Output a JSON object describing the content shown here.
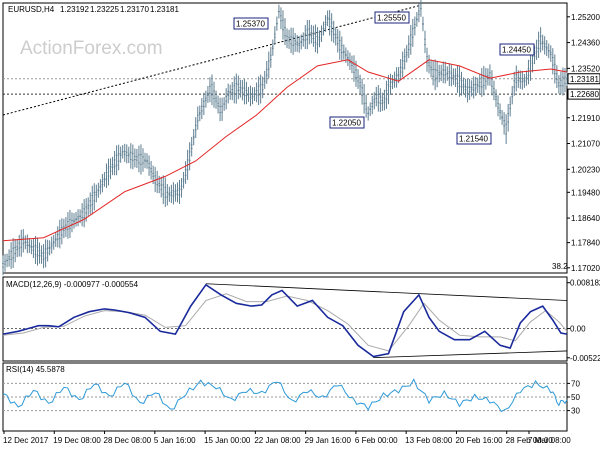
{
  "chart_data": [
    {
      "type": "candlestick",
      "symbol_label": "EURUSD,H4",
      "ohlc": [
        "1.23192",
        "1.23225",
        "1.23170",
        "1.23181"
      ],
      "watermark": "ActionForex.com",
      "ylim": [
        1.1685,
        1.2565
      ],
      "y_ticks": [
        "1.25200",
        "1.24360",
        "1.23520",
        "1.22680",
        "1.21910",
        "1.21070",
        "1.20230",
        "1.19480",
        "1.18640",
        "1.17840",
        "1.17020"
      ],
      "current_price": "1.23181",
      "horizontal_level": "1.22680",
      "corner_text": "38.2",
      "annotations": [
        {
          "text": "1.25370",
          "value": 1.2537
        },
        {
          "text": "1.25550",
          "value": 1.2555
        },
        {
          "text": "1.22050",
          "value": 1.2205
        },
        {
          "text": "1.24450",
          "value": 1.2445
        },
        {
          "text": "1.21540",
          "value": 1.2154
        }
      ],
      "price_path": [
        [
          0,
          1.171
        ],
        [
          20,
          1.179
        ],
        [
          40,
          1.174
        ],
        [
          60,
          1.183
        ],
        [
          80,
          1.188
        ],
        [
          95,
          1.196
        ],
        [
          105,
          1.202
        ],
        [
          118,
          1.208
        ],
        [
          130,
          1.206
        ],
        [
          142,
          1.205
        ],
        [
          150,
          1.199
        ],
        [
          162,
          1.194
        ],
        [
          175,
          1.195
        ],
        [
          183,
          1.205
        ],
        [
          192,
          1.219
        ],
        [
          205,
          1.229
        ],
        [
          215,
          1.221
        ],
        [
          222,
          1.227
        ],
        [
          232,
          1.229
        ],
        [
          245,
          1.226
        ],
        [
          256,
          1.229
        ],
        [
          265,
          1.24
        ],
        [
          272,
          1.2537
        ],
        [
          280,
          1.245
        ],
        [
          292,
          1.243
        ],
        [
          302,
          1.247
        ],
        [
          311,
          1.244
        ],
        [
          320,
          1.2515
        ],
        [
          333,
          1.242
        ],
        [
          345,
          1.236
        ],
        [
          352,
          1.23
        ],
        [
          360,
          1.2205
        ],
        [
          368,
          1.226
        ],
        [
          375,
          1.224
        ],
        [
          382,
          1.23
        ],
        [
          390,
          1.233
        ],
        [
          398,
          1.24
        ],
        [
          406,
          1.249
        ],
        [
          412,
          1.2555
        ],
        [
          418,
          1.238
        ],
        [
          425,
          1.233
        ],
        [
          435,
          1.234
        ],
        [
          447,
          1.232
        ],
        [
          458,
          1.228
        ],
        [
          470,
          1.23
        ],
        [
          480,
          1.233
        ],
        [
          488,
          1.223
        ],
        [
          496,
          1.2154
        ],
        [
          505,
          1.232
        ],
        [
          515,
          1.231
        ],
        [
          522,
          1.238
        ],
        [
          530,
          1.2445
        ],
        [
          540,
          1.24
        ],
        [
          548,
          1.23
        ],
        [
          556,
          1.2318
        ]
      ],
      "ma_path": [
        [
          0,
          1.179
        ],
        [
          40,
          1.18
        ],
        [
          80,
          1.186
        ],
        [
          120,
          1.195
        ],
        [
          160,
          1.2
        ],
        [
          190,
          1.205
        ],
        [
          220,
          1.213
        ],
        [
          250,
          1.22
        ],
        [
          280,
          1.229
        ],
        [
          310,
          1.236
        ],
        [
          340,
          1.238
        ],
        [
          360,
          1.234
        ],
        [
          390,
          1.231
        ],
        [
          420,
          1.238
        ],
        [
          450,
          1.236
        ],
        [
          480,
          1.232
        ],
        [
          510,
          1.234
        ],
        [
          540,
          1.235
        ],
        [
          556,
          1.234
        ]
      ],
      "trendline": [
        [
          0,
          1.22
        ],
        [
          412,
          1.2558
        ]
      ]
    },
    {
      "type": "line",
      "title": "MACD(12,26,9) -0.000977 -0.000554",
      "ylim": [
        -0.0058,
        0.0092
      ],
      "y_ticks": [
        {
          "text": "0.008182",
          "value": 0.008182
        },
        {
          "text": "0.00",
          "value": 0.0
        },
        {
          "text": "-0.005223",
          "value": -0.005223
        }
      ],
      "macd_path": [
        [
          0,
          -0.001
        ],
        [
          15,
          -0.0005
        ],
        [
          25,
          0.0
        ],
        [
          35,
          0.0005
        ],
        [
          45,
          0.0005
        ],
        [
          55,
          0.0003
        ],
        [
          70,
          0.002
        ],
        [
          85,
          0.003
        ],
        [
          100,
          0.0035
        ],
        [
          110,
          0.0033
        ],
        [
          125,
          0.0028
        ],
        [
          140,
          0.002
        ],
        [
          155,
          -0.0005
        ],
        [
          170,
          -0.001
        ],
        [
          185,
          0.004
        ],
        [
          200,
          0.0078
        ],
        [
          215,
          0.006
        ],
        [
          230,
          0.0045
        ],
        [
          245,
          0.004
        ],
        [
          255,
          0.0042
        ],
        [
          265,
          0.006
        ],
        [
          275,
          0.0068
        ],
        [
          290,
          0.004
        ],
        [
          305,
          0.005
        ],
        [
          320,
          0.002
        ],
        [
          335,
          0.0005
        ],
        [
          350,
          -0.003
        ],
        [
          365,
          -0.005
        ],
        [
          380,
          -0.0045
        ],
        [
          395,
          0.003
        ],
        [
          410,
          0.006
        ],
        [
          420,
          0.002
        ],
        [
          430,
          -0.0005
        ],
        [
          445,
          -0.002
        ],
        [
          460,
          -0.002
        ],
        [
          475,
          -0.0005
        ],
        [
          490,
          -0.003
        ],
        [
          500,
          -0.0035
        ],
        [
          510,
          0.001
        ],
        [
          520,
          0.003
        ],
        [
          532,
          0.004
        ],
        [
          542,
          0.0015
        ],
        [
          550,
          -0.0008
        ],
        [
          556,
          -0.001
        ]
      ],
      "signal_path": [
        [
          0,
          -0.0012
        ],
        [
          20,
          -0.0008
        ],
        [
          40,
          0.0002
        ],
        [
          60,
          0.0004
        ],
        [
          80,
          0.0022
        ],
        [
          100,
          0.0032
        ],
        [
          120,
          0.003
        ],
        [
          140,
          0.0024
        ],
        [
          160,
          0.0002
        ],
        [
          180,
          0.0005
        ],
        [
          200,
          0.005
        ],
        [
          220,
          0.0062
        ],
        [
          240,
          0.0048
        ],
        [
          260,
          0.0048
        ],
        [
          280,
          0.0058
        ],
        [
          300,
          0.005
        ],
        [
          320,
          0.0032
        ],
        [
          340,
          0.0008
        ],
        [
          360,
          -0.003
        ],
        [
          380,
          -0.004
        ],
        [
          400,
          0.0005
        ],
        [
          415,
          0.0045
        ],
        [
          430,
          0.0015
        ],
        [
          450,
          -0.0012
        ],
        [
          470,
          -0.0015
        ],
        [
          490,
          -0.0015
        ],
        [
          505,
          -0.0022
        ],
        [
          520,
          0.0012
        ],
        [
          535,
          0.0032
        ],
        [
          548,
          0.0012
        ],
        [
          556,
          -0.0005
        ]
      ],
      "trendline_upper": [
        [
          200,
          0.008
        ],
        [
          556,
          0.005
        ]
      ],
      "trendline_lower": [
        [
          365,
          -0.0052
        ],
        [
          556,
          -0.004
        ]
      ]
    },
    {
      "type": "line",
      "title": "RSI(14) 45.5878",
      "ylim": [
        0,
        100
      ],
      "y_ticks": [
        {
          "text": "70",
          "value": 70
        },
        {
          "text": "50",
          "value": 50
        },
        {
          "text": "30",
          "value": 30
        }
      ],
      "rsi_path": [
        [
          0,
          55
        ],
        [
          15,
          35
        ],
        [
          30,
          60
        ],
        [
          45,
          40
        ],
        [
          60,
          65
        ],
        [
          75,
          45
        ],
        [
          90,
          70
        ],
        [
          105,
          50
        ],
        [
          120,
          72
        ],
        [
          135,
          40
        ],
        [
          150,
          58
        ],
        [
          165,
          30
        ],
        [
          180,
          55
        ],
        [
          195,
          72
        ],
        [
          210,
          65
        ],
        [
          225,
          45
        ],
        [
          240,
          60
        ],
        [
          255,
          55
        ],
        [
          270,
          75
        ],
        [
          285,
          42
        ],
        [
          300,
          60
        ],
        [
          315,
          48
        ],
        [
          330,
          70
        ],
        [
          345,
          45
        ],
        [
          360,
          35
        ],
        [
          375,
          52
        ],
        [
          390,
          60
        ],
        [
          405,
          72
        ],
        [
          420,
          45
        ],
        [
          435,
          55
        ],
        [
          450,
          40
        ],
        [
          465,
          50
        ],
        [
          480,
          45
        ],
        [
          495,
          28
        ],
        [
          510,
          60
        ],
        [
          525,
          70
        ],
        [
          540,
          60
        ],
        [
          548,
          40
        ],
        [
          556,
          46
        ]
      ]
    }
  ],
  "x_ticks": [
    "12 Dec 2017",
    "19 Dec 08:00",
    "28 Dec 08:00",
    "5 Jan 16:00",
    "15 Jan 00:00",
    "22 Jan 08:00",
    "29 Jan 16:00",
    "6 Feb 00:00",
    "13 Feb 08:00",
    "20 Feb 16:00",
    "28 Feb 00:00",
    "7 Mar 08:00"
  ]
}
